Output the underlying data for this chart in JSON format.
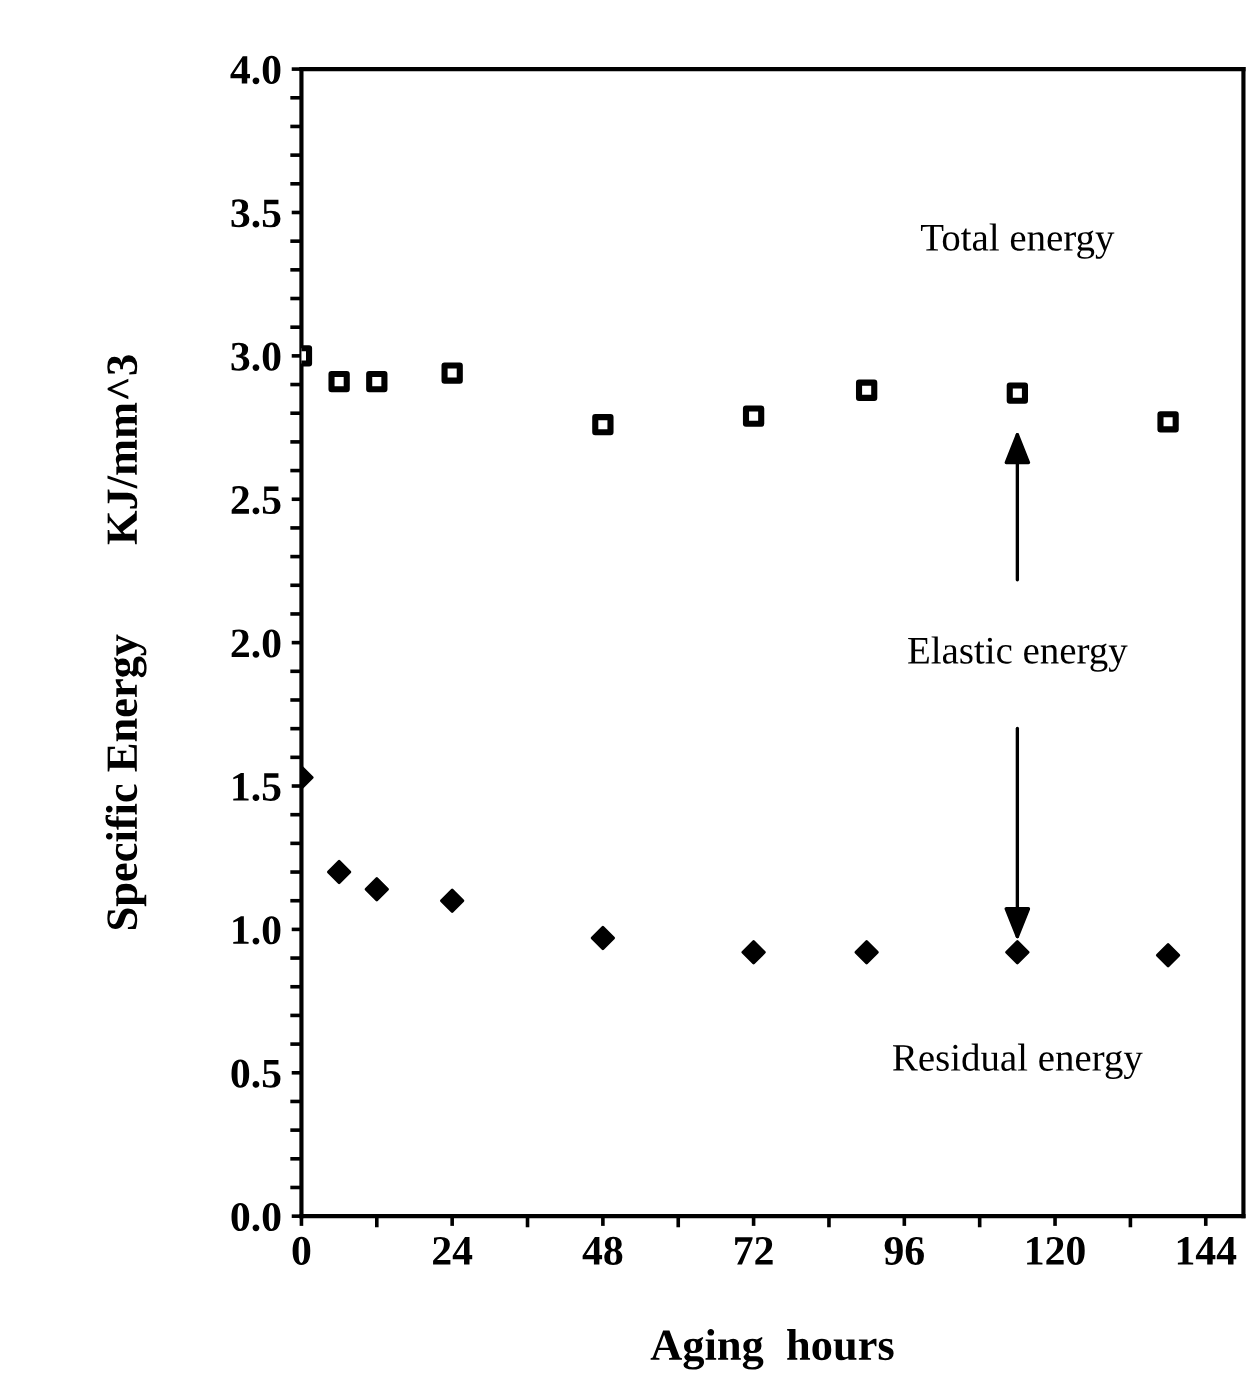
{
  "chart_data": {
    "type": "scatter",
    "xlabel": "Aging  hours",
    "ylabel": "Specific Energy        KJ/mm^3",
    "x": [
      0,
      6,
      12,
      24,
      48,
      72,
      90,
      114,
      138
    ],
    "series": [
      {
        "color": "#000000",
        "marker": "square",
        "values": [
          3.0,
          2.91,
          2.91,
          2.94,
          2.76,
          2.79,
          2.88,
          2.87,
          2.77
        ]
      },
      {
        "color": "#000000",
        "marker": "diamond",
        "values": [
          1.53,
          1.2,
          1.14,
          1.1,
          0.97,
          0.92,
          0.92,
          0.92,
          0.91
        ]
      }
    ],
    "xlim": [
      0,
      150
    ],
    "xticks": [
      0,
      24,
      48,
      72,
      96,
      120,
      144
    ],
    "ylim": [
      0,
      4
    ],
    "yticks": [
      {
        "value": 0,
        "label": "0.0"
      },
      {
        "value": 0.5,
        "label": "0.5"
      },
      {
        "value": 1,
        "label": "1.0"
      },
      {
        "value": 1.5,
        "label": "1.5"
      },
      {
        "value": 2,
        "label": "2.0"
      },
      {
        "value": 2.5,
        "label": "2.5"
      },
      {
        "value": 3,
        "label": "3.0"
      },
      {
        "value": 3.5,
        "label": "3.5"
      },
      {
        "value": 4,
        "label": "4.0"
      }
    ],
    "grid": false,
    "legend": false,
    "annotations": [
      "Total energy",
      "Elastic energy",
      "Residual energy"
    ]
  }
}
